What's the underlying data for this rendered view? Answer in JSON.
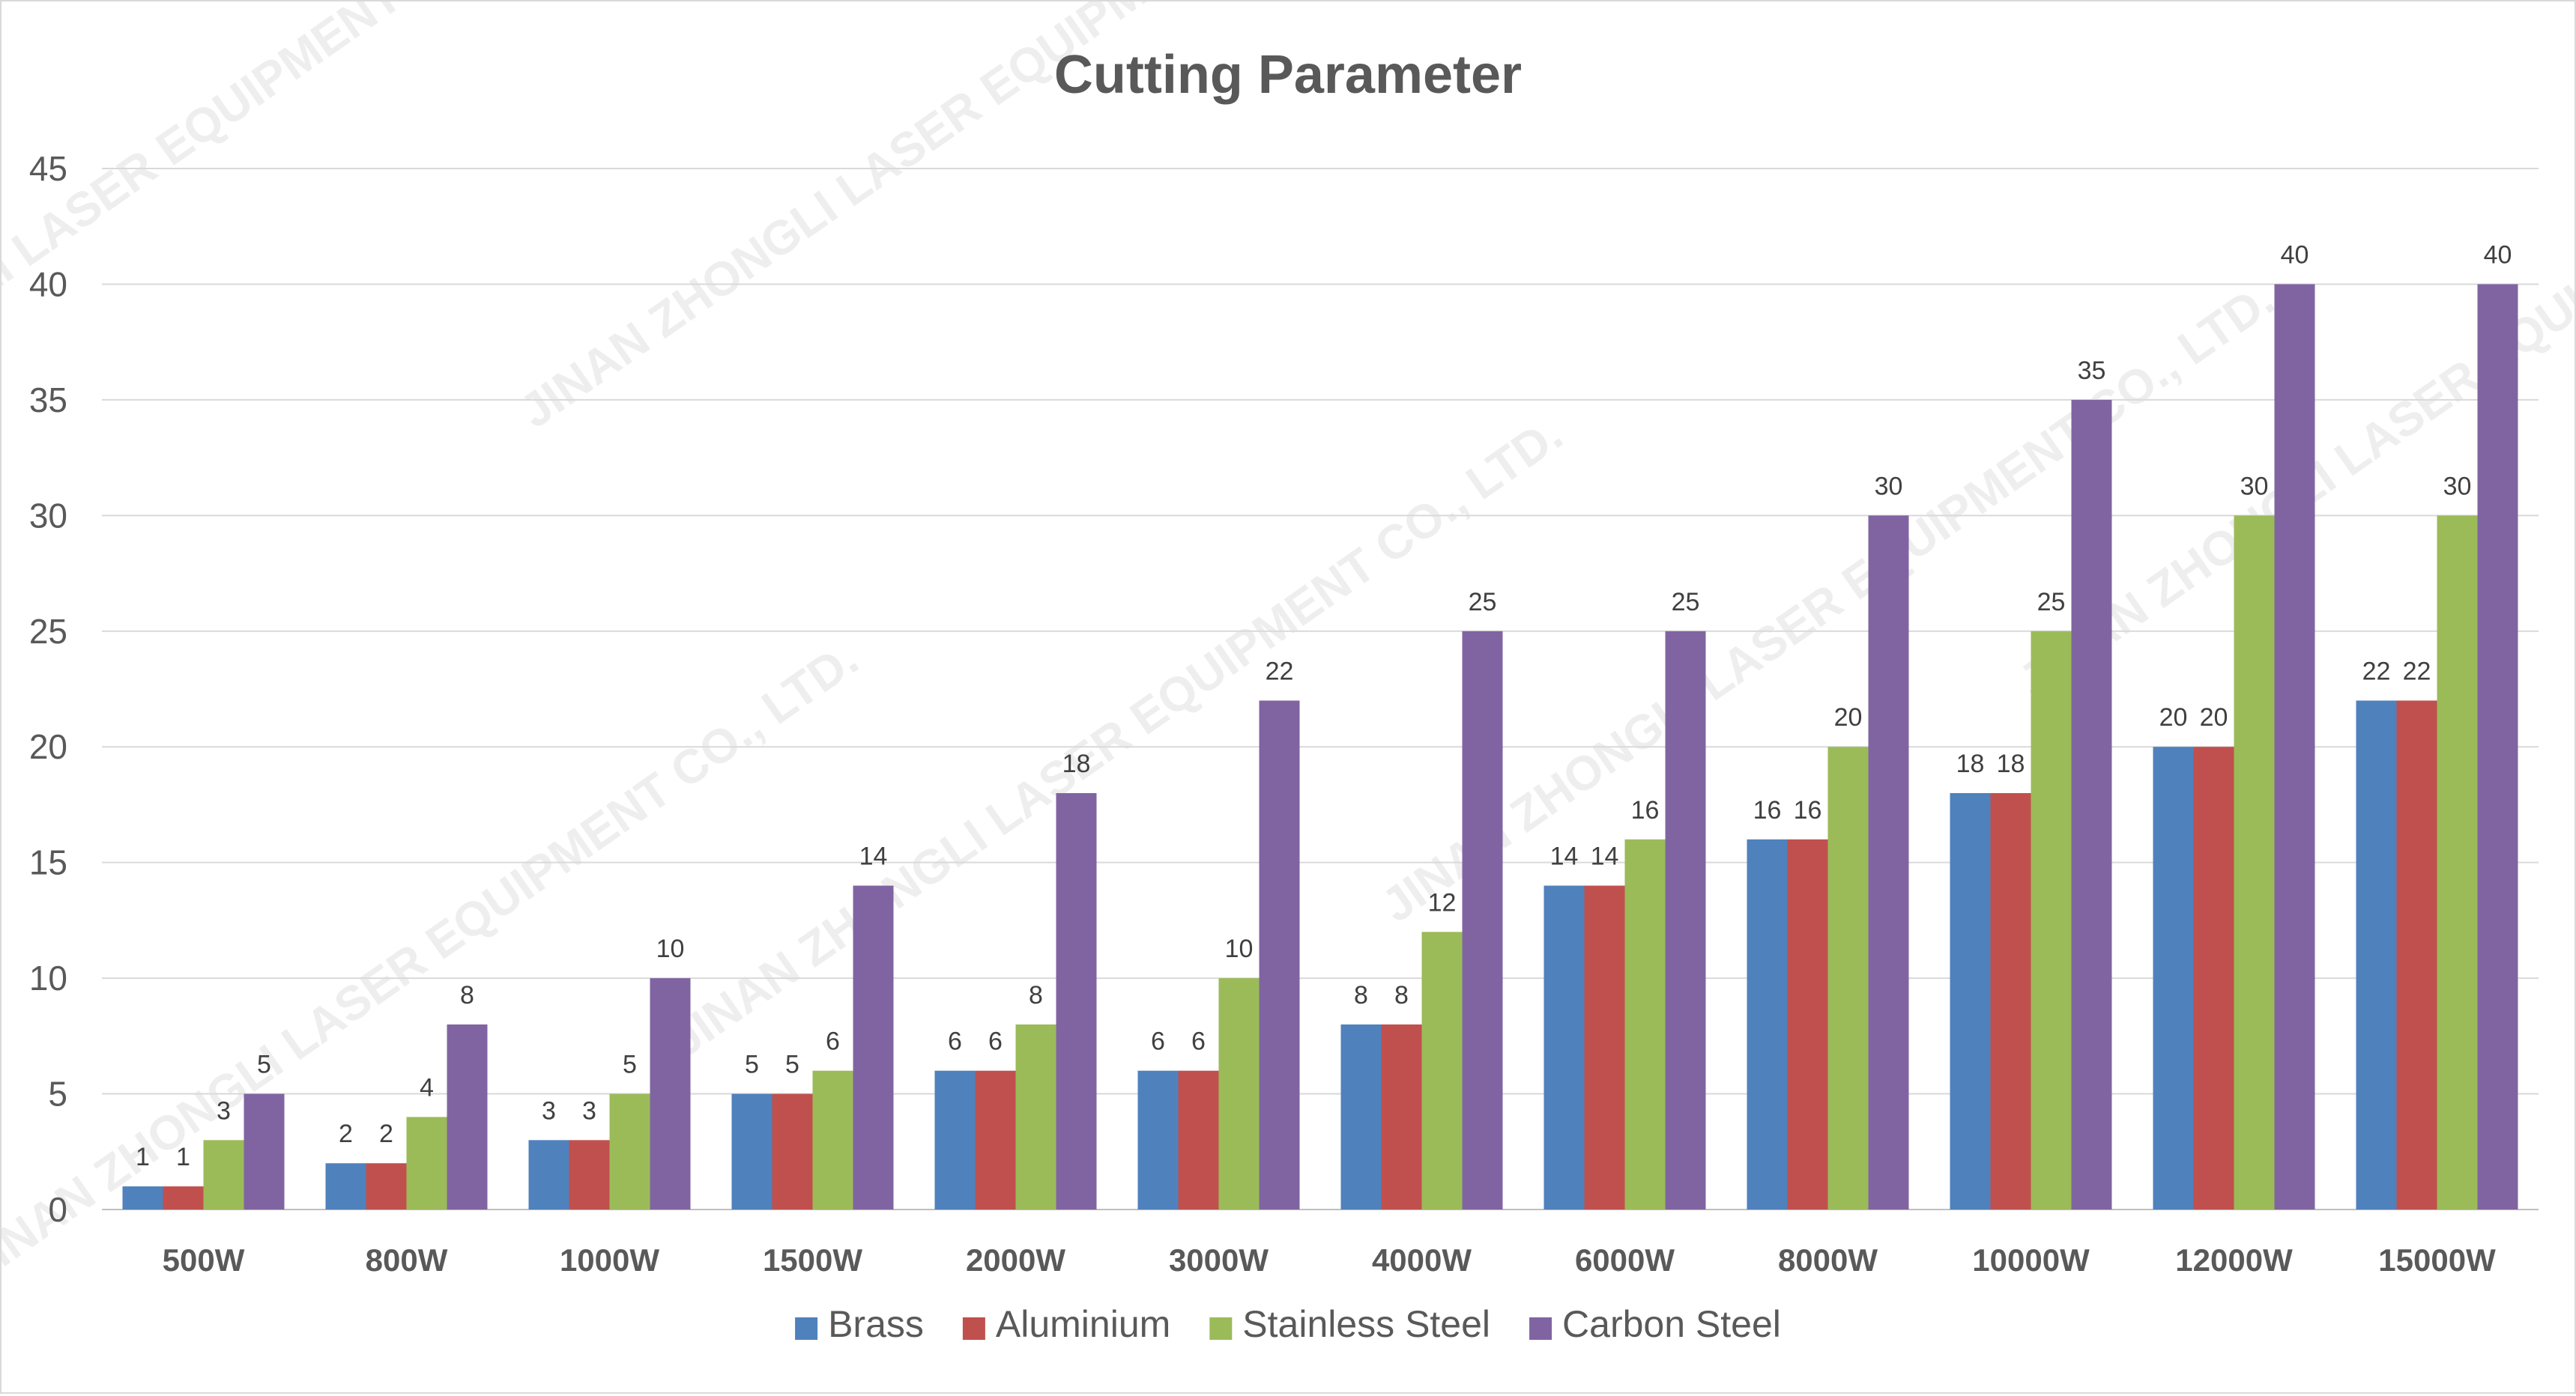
{
  "watermark": "JINAN ZHONGLI LASER EQUIPMENT CO., LTD.",
  "chart_data": {
    "type": "bar",
    "title": "Cutting Parameter",
    "xlabel": "",
    "ylabel": "",
    "ylim": [
      0,
      45
    ],
    "ytick_step": 5,
    "grid": true,
    "legend_position": "bottom",
    "categories": [
      "500W",
      "800W",
      "1000W",
      "1500W",
      "2000W",
      "3000W",
      "4000W",
      "6000W",
      "8000W",
      "10000W",
      "12000W",
      "15000W"
    ],
    "series": [
      {
        "name": "Brass",
        "color": "#4f81bd",
        "values": [
          1,
          2,
          3,
          5,
          6,
          6,
          8,
          14,
          16,
          18,
          20,
          22
        ]
      },
      {
        "name": "Aluminium",
        "color": "#c0504d",
        "values": [
          1,
          2,
          3,
          5,
          6,
          6,
          8,
          14,
          16,
          18,
          20,
          22
        ]
      },
      {
        "name": "Stainless Steel",
        "color": "#9bbb59",
        "values": [
          3,
          4,
          5,
          6,
          8,
          10,
          12,
          16,
          20,
          25,
          30,
          30
        ]
      },
      {
        "name": "Carbon Steel",
        "color": "#8064a2",
        "values": [
          5,
          8,
          10,
          14,
          18,
          22,
          25,
          25,
          30,
          35,
          40,
          40
        ]
      }
    ]
  }
}
